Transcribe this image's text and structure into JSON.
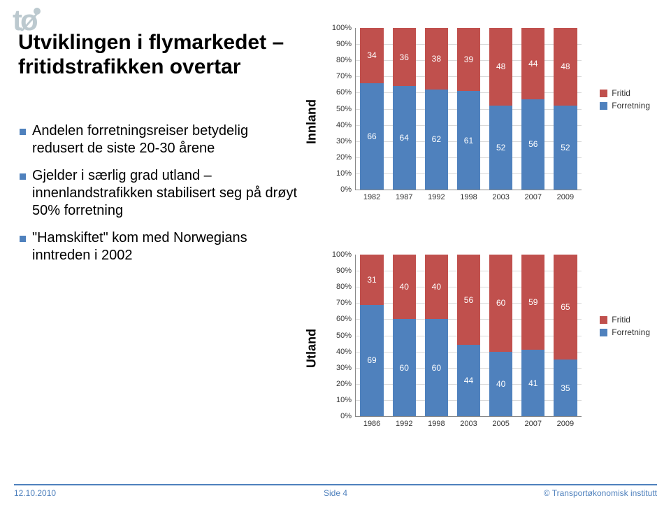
{
  "logo_text": "tø",
  "title": "Utviklingen i flymarkedet – fritidstrafikken overtar",
  "bullets": [
    "Andelen forretningsreiser betydelig redusert de siste 20-30 årene",
    "Gjelder i særlig grad utland – innenlandstrafikken stabilisert seg på drøyt 50% forretning",
    "\"Hamskiftet\" kom med Norwegians inntreden i 2002"
  ],
  "legend": {
    "items": [
      {
        "label": "Fritid",
        "color": "#c0504d"
      },
      {
        "label": "Forretning",
        "color": "#4f81bd"
      }
    ]
  },
  "colors": {
    "fritid": "#c0504d",
    "forretning": "#4f81bd",
    "grid": "#d9d9d9",
    "axis": "#888888",
    "bg": "#ffffff"
  },
  "chart_innland": {
    "type": "stacked-bar-100",
    "ylabel": "Innland",
    "ylim": [
      0,
      100
    ],
    "ytick_step": 10,
    "ytick_suffix": "%",
    "categories": [
      "1982",
      "1987",
      "1992",
      "1998",
      "2003",
      "2007",
      "2009"
    ],
    "fritid": [
      34,
      36,
      38,
      39,
      48,
      44,
      48
    ],
    "forretning": [
      66,
      64,
      62,
      61,
      52,
      56,
      52
    ]
  },
  "chart_utland": {
    "type": "stacked-bar-100",
    "ylabel": "Utland",
    "ylim": [
      0,
      100
    ],
    "ytick_step": 10,
    "ytick_suffix": "%",
    "categories": [
      "1986",
      "1992",
      "1998",
      "2003",
      "2005",
      "2007",
      "2009"
    ],
    "fritid": [
      31,
      40,
      40,
      56,
      60,
      59,
      65
    ],
    "forretning": [
      69,
      60,
      60,
      44,
      40,
      41,
      35
    ]
  },
  "footer": {
    "date": "12.10.2010",
    "page": "Side 4",
    "copyright": "© Transportøkonomisk institutt"
  }
}
